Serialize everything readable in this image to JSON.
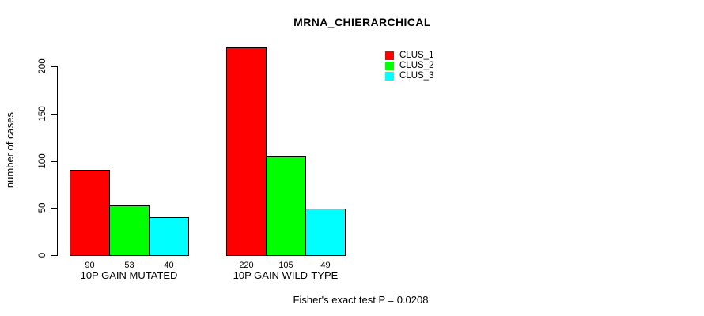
{
  "title": "MRNA_CHIERARCHICAL",
  "y_axis_label": "number of cases",
  "footer": "Fisher's exact test P = 0.0208",
  "legend": [
    {
      "label": "CLUS_1",
      "color": "#ff0000"
    },
    {
      "label": "CLUS_2",
      "color": "#00ff00"
    },
    {
      "label": "CLUS_3",
      "color": "#00ffff"
    }
  ],
  "chart_data": {
    "type": "bar",
    "title": "MRNA_CHIERARCHICAL",
    "categories": [
      "10P GAIN MUTATED",
      "10P GAIN WILD-TYPE"
    ],
    "series": [
      {
        "name": "CLUS_1",
        "color": "#ff0000",
        "values": [
          90,
          220
        ]
      },
      {
        "name": "CLUS_2",
        "color": "#00ff00",
        "values": [
          53,
          105
        ]
      },
      {
        "name": "CLUS_3",
        "color": "#00ffff",
        "values": [
          40,
          49
        ]
      }
    ],
    "xlabel": "",
    "ylabel": "number of cases",
    "y_ticks": [
      0,
      50,
      100,
      150,
      200
    ],
    "ylim": [
      0,
      220
    ],
    "grid": false,
    "bar_borders": "#000000",
    "bar_value_labels_shown": true,
    "legend_position": "top-right",
    "annotation": "Fisher's exact test P = 0.0208"
  }
}
